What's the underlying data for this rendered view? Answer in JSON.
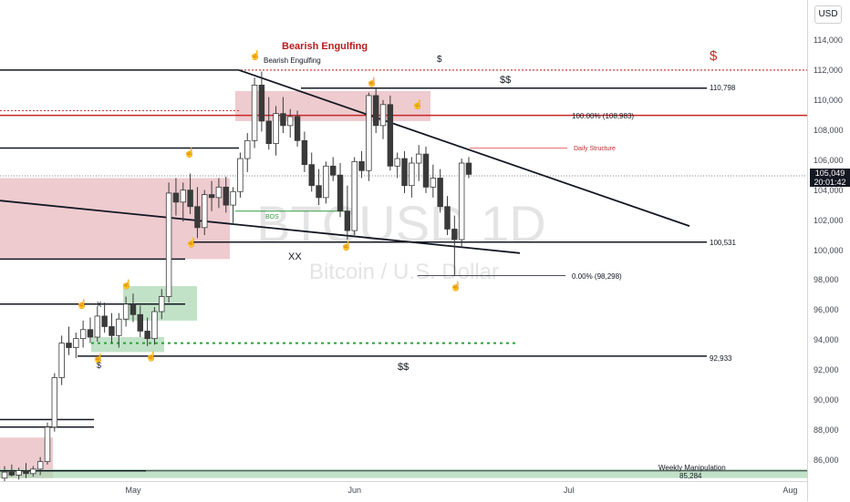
{
  "axis": {
    "currency": "USD",
    "y_ticks": [
      "114,000",
      "112,000",
      "110,000",
      "108,000",
      "106,000",
      "104,000",
      "102,000",
      "100,000",
      "98,000",
      "96,000",
      "94,000",
      "92,000",
      "90,000",
      "88,000",
      "86,000"
    ],
    "x_ticks": [
      "May",
      "Jun",
      "Jul",
      "Aug"
    ],
    "last_price": "105,049",
    "countdown": "20:01:42"
  },
  "colors": {
    "bull": "#ffffff",
    "bear": "#3a3a3a",
    "supply_zone": "#e8b9bf",
    "demand_zone": "#a8d5b0",
    "red_line": "#c2185b",
    "green_dotted": "#2e9e3f"
  },
  "annotations": {
    "watermark_title": "BTCUSD 1D",
    "watermark_sub": "Bitcoin / U.S. Dollar",
    "bearish_title": "Bearish Engulfing",
    "bearish_small": "Bearish Engulfing",
    "dollar_red": "$",
    "dollar_top": "$",
    "dollar_dbl_top": "$$",
    "dollar_dbl_bottom": "$$",
    "level_110798": "110,798",
    "fib_100": "100.00% (108,983)",
    "daily_structure": "Daily Structure",
    "bos": "BOS",
    "xx": "XX",
    "level_100531": "100,531",
    "fib_0": "0.00% (98,298)",
    "level_92933": "92,933",
    "weekly_manip": "Weekly Manipulation",
    "level_85284": "85,284",
    "x_mark": "X",
    "dollar_low": "$"
  },
  "chart_data": {
    "type": "candlestick",
    "title": "BTCUSD 1D",
    "subtitle": "Bitcoin / U.S. Dollar",
    "ylim": [
      84800,
      115500
    ],
    "candles": [
      [
        84800,
        85600,
        84500,
        85200
      ],
      [
        85200,
        85700,
        84900,
        85000
      ],
      [
        85000,
        85500,
        84700,
        85300
      ],
      [
        85300,
        85800,
        84800,
        85100
      ],
      [
        85100,
        85600,
        84900,
        85400
      ],
      [
        85400,
        86200,
        85000,
        85900
      ],
      [
        85900,
        88500,
        85700,
        88200
      ],
      [
        88200,
        91800,
        87900,
        91500
      ],
      [
        91500,
        94300,
        91000,
        93800
      ],
      [
        93800,
        94900,
        93000,
        93500
      ],
      [
        93500,
        94500,
        92800,
        94100
      ],
      [
        94100,
        95300,
        93500,
        94700
      ],
      [
        94700,
        95500,
        93800,
        94200
      ],
      [
        94200,
        96200,
        93900,
        95600
      ],
      [
        95600,
        96500,
        94500,
        94900
      ],
      [
        94900,
        95800,
        93800,
        94300
      ],
      [
        94300,
        95800,
        93500,
        95400
      ],
      [
        95400,
        96900,
        94900,
        96400
      ],
      [
        96400,
        97100,
        95200,
        95700
      ],
      [
        95700,
        96300,
        94200,
        94600
      ],
      [
        94600,
        95500,
        93600,
        94100
      ],
      [
        94100,
        96200,
        93700,
        95900
      ],
      [
        95900,
        97400,
        95400,
        96900
      ],
      [
        96900,
        104500,
        96500,
        103800
      ],
      [
        103800,
        104800,
        102300,
        103200
      ],
      [
        103200,
        104500,
        101900,
        104000
      ],
      [
        104000,
        105100,
        102400,
        102900
      ],
      [
        102900,
        104200,
        100800,
        101500
      ],
      [
        101500,
        104000,
        101000,
        103700
      ],
      [
        103700,
        104600,
        102600,
        103500
      ],
      [
        103500,
        104800,
        102800,
        104200
      ],
      [
        104200,
        104900,
        102500,
        103000
      ],
      [
        103000,
        104200,
        101800,
        103900
      ],
      [
        103900,
        106500,
        103500,
        106100
      ],
      [
        106100,
        107800,
        105200,
        107300
      ],
      [
        107300,
        111500,
        106800,
        111000
      ],
      [
        111000,
        111900,
        107900,
        108600
      ],
      [
        108600,
        110200,
        106700,
        107100
      ],
      [
        107100,
        109600,
        106300,
        109100
      ],
      [
        109100,
        110200,
        107800,
        108300
      ],
      [
        108300,
        109400,
        107500,
        108900
      ],
      [
        108900,
        109300,
        106900,
        107300
      ],
      [
        107300,
        107900,
        105200,
        105700
      ],
      [
        105700,
        106500,
        103900,
        104300
      ],
      [
        104300,
        105400,
        103000,
        103500
      ],
      [
        103500,
        105900,
        103100,
        105600
      ],
      [
        105600,
        106200,
        104600,
        105000
      ],
      [
        105000,
        105800,
        102200,
        102600
      ],
      [
        102600,
        104300,
        100700,
        101300
      ],
      [
        101300,
        106200,
        101000,
        105900
      ],
      [
        105900,
        106600,
        104800,
        105300
      ],
      [
        105300,
        110500,
        104600,
        110300
      ],
      [
        110300,
        110800,
        107800,
        108300
      ],
      [
        108300,
        110000,
        107400,
        109700
      ],
      [
        109700,
        110300,
        105300,
        105600
      ],
      [
        105600,
        106500,
        104800,
        106100
      ],
      [
        106100,
        106600,
        103800,
        104300
      ],
      [
        104300,
        106200,
        103500,
        105800
      ],
      [
        105800,
        107000,
        104600,
        106400
      ],
      [
        106400,
        106900,
        103800,
        104200
      ],
      [
        104200,
        105700,
        103500,
        104800
      ],
      [
        104800,
        105400,
        102500,
        102900
      ],
      [
        102900,
        103600,
        101000,
        101400
      ],
      [
        101400,
        102300,
        98300,
        100700
      ],
      [
        100700,
        106100,
        100200,
        105800
      ],
      [
        105800,
        106200,
        104800,
        105049
      ]
    ]
  }
}
